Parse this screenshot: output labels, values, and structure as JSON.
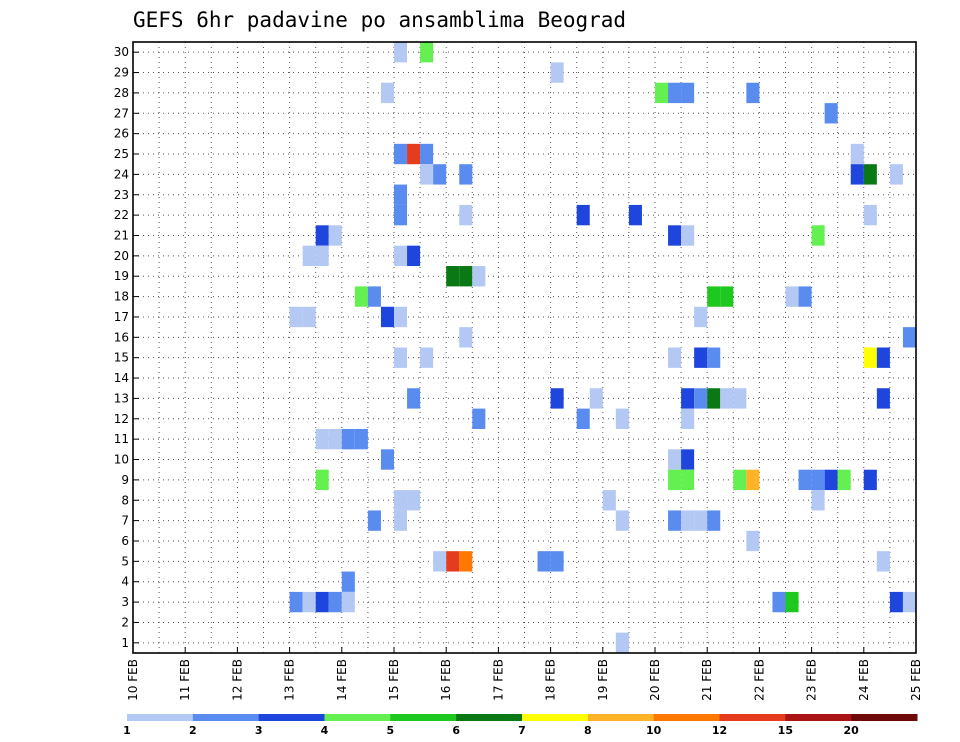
{
  "chart_data": {
    "type": "heatmap",
    "title": "GEFS 6hr padavine po ansamblima Beograd",
    "xlabel": "",
    "ylabel": "",
    "y_ticks": [
      1,
      2,
      3,
      4,
      5,
      6,
      7,
      8,
      9,
      10,
      11,
      12,
      13,
      14,
      15,
      16,
      17,
      18,
      19,
      20,
      21,
      22,
      23,
      24,
      25,
      26,
      27,
      28,
      29,
      30
    ],
    "ylim": [
      0.5,
      30.5
    ],
    "x_ticks": [
      "10 FEB",
      "11 FEB",
      "12 FEB",
      "13 FEB",
      "14 FEB",
      "15 FEB",
      "16 FEB",
      "17 FEB",
      "18 FEB",
      "19 FEB",
      "20 FEB",
      "21 FEB",
      "22 FEB",
      "23 FEB",
      "24 FEB",
      "25 FEB"
    ],
    "x_units": "days since 10 FEB 00Z, 6-hour steps",
    "xlim": [
      0,
      15
    ],
    "grid": true,
    "legend_placement": "bottom",
    "legend": {
      "colors": [
        "#b4c8f4",
        "#5a8cf0",
        "#1e46dc",
        "#64f050",
        "#1ec81e",
        "#0a7814",
        "#ffff00",
        "#ffb428",
        "#ff7800",
        "#e63c1e",
        "#aa1414",
        "#6e0a0a"
      ],
      "labels": [
        "1",
        "2",
        "3",
        "4",
        "5",
        "6",
        "7",
        "8",
        "10",
        "12",
        "15",
        "20"
      ]
    },
    "cells": [
      {
        "member": 30,
        "x": 5.125,
        "c": 0
      },
      {
        "member": 30,
        "x": 5.625,
        "c": 3
      },
      {
        "member": 29,
        "x": 8.125,
        "c": 0
      },
      {
        "member": 28,
        "x": 4.875,
        "c": 0
      },
      {
        "member": 28,
        "x": 10.125,
        "c": 3
      },
      {
        "member": 28,
        "x": 10.375,
        "c": 1
      },
      {
        "member": 28,
        "x": 10.625,
        "c": 1
      },
      {
        "member": 28,
        "x": 11.875,
        "c": 1
      },
      {
        "member": 27,
        "x": 13.375,
        "c": 1
      },
      {
        "member": 25,
        "x": 5.125,
        "c": 1
      },
      {
        "member": 25,
        "x": 5.375,
        "c": 9
      },
      {
        "member": 25,
        "x": 5.625,
        "c": 1
      },
      {
        "member": 25,
        "x": 13.875,
        "c": 0
      },
      {
        "member": 24,
        "x": 5.625,
        "c": 0
      },
      {
        "member": 24,
        "x": 5.875,
        "c": 1
      },
      {
        "member": 24,
        "x": 6.375,
        "c": 1
      },
      {
        "member": 24,
        "x": 13.875,
        "c": 2
      },
      {
        "member": 24,
        "x": 14.125,
        "c": 5
      },
      {
        "member": 24,
        "x": 14.625,
        "c": 0
      },
      {
        "member": 23,
        "x": 5.125,
        "c": 1
      },
      {
        "member": 22,
        "x": 5.125,
        "c": 1
      },
      {
        "member": 22,
        "x": 6.375,
        "c": 0
      },
      {
        "member": 22,
        "x": 8.625,
        "c": 2
      },
      {
        "member": 22,
        "x": 9.625,
        "c": 2
      },
      {
        "member": 22,
        "x": 14.125,
        "c": 0
      },
      {
        "member": 21,
        "x": 3.625,
        "c": 2
      },
      {
        "member": 21,
        "x": 3.875,
        "c": 0
      },
      {
        "member": 21,
        "x": 10.375,
        "c": 2
      },
      {
        "member": 21,
        "x": 10.625,
        "c": 0
      },
      {
        "member": 21,
        "x": 13.125,
        "c": 3
      },
      {
        "member": 20,
        "x": 3.375,
        "c": 0
      },
      {
        "member": 20,
        "x": 3.625,
        "c": 0
      },
      {
        "member": 20,
        "x": 5.125,
        "c": 0
      },
      {
        "member": 20,
        "x": 5.375,
        "c": 2
      },
      {
        "member": 19,
        "x": 6.125,
        "c": 5
      },
      {
        "member": 19,
        "x": 6.375,
        "c": 5
      },
      {
        "member": 19,
        "x": 6.625,
        "c": 0
      },
      {
        "member": 18,
        "x": 4.375,
        "c": 3
      },
      {
        "member": 18,
        "x": 4.625,
        "c": 1
      },
      {
        "member": 18,
        "x": 11.125,
        "c": 4
      },
      {
        "member": 18,
        "x": 11.375,
        "c": 4
      },
      {
        "member": 18,
        "x": 12.625,
        "c": 0
      },
      {
        "member": 18,
        "x": 12.875,
        "c": 1
      },
      {
        "member": 17,
        "x": 3.125,
        "c": 0
      },
      {
        "member": 17,
        "x": 3.375,
        "c": 0
      },
      {
        "member": 17,
        "x": 4.875,
        "c": 2
      },
      {
        "member": 17,
        "x": 5.125,
        "c": 0
      },
      {
        "member": 17,
        "x": 10.875,
        "c": 0
      },
      {
        "member": 16,
        "x": 6.375,
        "c": 0
      },
      {
        "member": 16,
        "x": 14.875,
        "c": 1
      },
      {
        "member": 15,
        "x": 5.125,
        "c": 0
      },
      {
        "member": 15,
        "x": 5.625,
        "c": 0
      },
      {
        "member": 15,
        "x": 10.375,
        "c": 0
      },
      {
        "member": 15,
        "x": 10.875,
        "c": 2
      },
      {
        "member": 15,
        "x": 11.125,
        "c": 1
      },
      {
        "member": 15,
        "x": 14.125,
        "c": 6
      },
      {
        "member": 15,
        "x": 14.375,
        "c": 2
      },
      {
        "member": 13,
        "x": 5.375,
        "c": 1
      },
      {
        "member": 13,
        "x": 8.125,
        "c": 2
      },
      {
        "member": 13,
        "x": 8.875,
        "c": 0
      },
      {
        "member": 13,
        "x": 10.625,
        "c": 2
      },
      {
        "member": 13,
        "x": 10.875,
        "c": 1
      },
      {
        "member": 13,
        "x": 11.125,
        "c": 5
      },
      {
        "member": 13,
        "x": 11.375,
        "c": 0
      },
      {
        "member": 13,
        "x": 11.625,
        "c": 0
      },
      {
        "member": 13,
        "x": 14.375,
        "c": 2
      },
      {
        "member": 12,
        "x": 6.625,
        "c": 1
      },
      {
        "member": 12,
        "x": 8.625,
        "c": 1
      },
      {
        "member": 12,
        "x": 9.375,
        "c": 0
      },
      {
        "member": 12,
        "x": 10.625,
        "c": 0
      },
      {
        "member": 11,
        "x": 3.625,
        "c": 0
      },
      {
        "member": 11,
        "x": 3.875,
        "c": 0
      },
      {
        "member": 11,
        "x": 4.125,
        "c": 1
      },
      {
        "member": 11,
        "x": 4.375,
        "c": 1
      },
      {
        "member": 10,
        "x": 4.875,
        "c": 1
      },
      {
        "member": 10,
        "x": 10.375,
        "c": 0
      },
      {
        "member": 10,
        "x": 10.625,
        "c": 2
      },
      {
        "member": 9,
        "x": 3.625,
        "c": 3
      },
      {
        "member": 9,
        "x": 10.375,
        "c": 3
      },
      {
        "member": 9,
        "x": 10.625,
        "c": 3
      },
      {
        "member": 9,
        "x": 11.625,
        "c": 3
      },
      {
        "member": 9,
        "x": 11.875,
        "c": 7
      },
      {
        "member": 9,
        "x": 12.875,
        "c": 1
      },
      {
        "member": 9,
        "x": 13.125,
        "c": 1
      },
      {
        "member": 9,
        "x": 13.375,
        "c": 2
      },
      {
        "member": 9,
        "x": 13.625,
        "c": 3
      },
      {
        "member": 9,
        "x": 14.125,
        "c": 2
      },
      {
        "member": 8,
        "x": 5.125,
        "c": 0
      },
      {
        "member": 8,
        "x": 5.375,
        "c": 0
      },
      {
        "member": 8,
        "x": 9.125,
        "c": 0
      },
      {
        "member": 8,
        "x": 13.125,
        "c": 0
      },
      {
        "member": 7,
        "x": 4.625,
        "c": 1
      },
      {
        "member": 7,
        "x": 5.125,
        "c": 0
      },
      {
        "member": 7,
        "x": 9.375,
        "c": 0
      },
      {
        "member": 7,
        "x": 10.375,
        "c": 1
      },
      {
        "member": 7,
        "x": 10.625,
        "c": 0
      },
      {
        "member": 7,
        "x": 10.875,
        "c": 0
      },
      {
        "member": 7,
        "x": 11.125,
        "c": 1
      },
      {
        "member": 6,
        "x": 11.875,
        "c": 0
      },
      {
        "member": 5,
        "x": 5.875,
        "c": 0
      },
      {
        "member": 5,
        "x": 6.125,
        "c": 9
      },
      {
        "member": 5,
        "x": 6.375,
        "c": 8
      },
      {
        "member": 5,
        "x": 7.875,
        "c": 1
      },
      {
        "member": 5,
        "x": 8.125,
        "c": 1
      },
      {
        "member": 5,
        "x": 14.375,
        "c": 0
      },
      {
        "member": 4,
        "x": 4.125,
        "c": 1
      },
      {
        "member": 3,
        "x": 3.125,
        "c": 1
      },
      {
        "member": 3,
        "x": 3.375,
        "c": 0
      },
      {
        "member": 3,
        "x": 3.625,
        "c": 2
      },
      {
        "member": 3,
        "x": 3.875,
        "c": 1
      },
      {
        "member": 3,
        "x": 4.125,
        "c": 0
      },
      {
        "member": 3,
        "x": 12.375,
        "c": 1
      },
      {
        "member": 3,
        "x": 12.625,
        "c": 4
      },
      {
        "member": 3,
        "x": 14.625,
        "c": 2
      },
      {
        "member": 3,
        "x": 14.875,
        "c": 0
      },
      {
        "member": 1,
        "x": 9.375,
        "c": 0
      }
    ]
  }
}
